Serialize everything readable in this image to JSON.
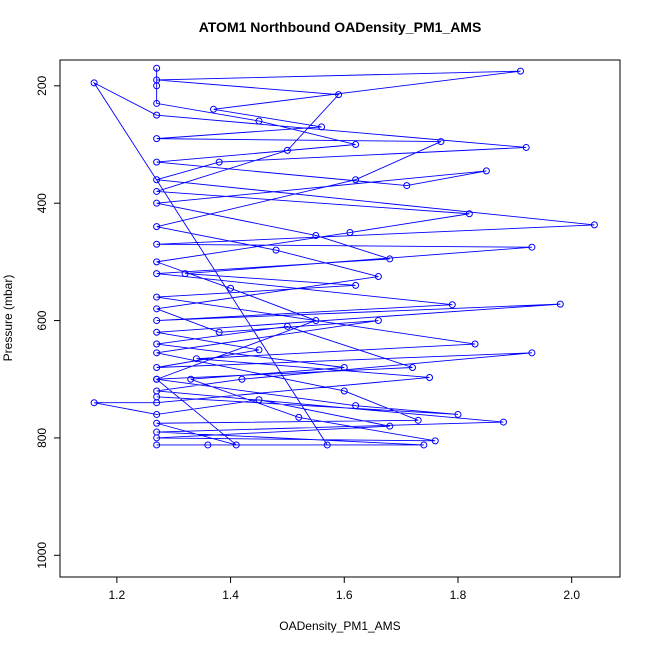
{
  "chart_data": {
    "type": "line-points",
    "title": "ATOM1 Northbound OADensity_PM1_AMS",
    "x_label": "OADensity_PM1_AMS",
    "y_label": "Pressure (mbar)",
    "xlim": [
      1.1,
      2.085
    ],
    "ylim": [
      1037,
      156
    ],
    "y_reversed": true,
    "xticks": [
      1.2,
      1.4,
      1.6,
      1.8,
      {
        "value": 2,
        "label": "2.0"
      }
    ],
    "yticks": [
      200,
      400,
      600,
      800,
      1000
    ],
    "series": [
      {
        "color": "#0000ff",
        "x": [
          1.27,
          1.27,
          1.27,
          1.45,
          1.62,
          1.27,
          1.71,
          1.85,
          1.27,
          1.55,
          1.68,
          1.27,
          1.79,
          1.27,
          1.98,
          1.27,
          1.45,
          1.27,
          1.93,
          1.42,
          1.27,
          1.88,
          1.27,
          1.74,
          1.27,
          1.36,
          1.57,
          1.16,
          1.27,
          1.92,
          1.38,
          1.27,
          2.04,
          1.27,
          1.93,
          1.32,
          1.62,
          1.27,
          1.83,
          1.34,
          1.75,
          1.27,
          1.16,
          1.27,
          1.45,
          1.68,
          1.27,
          1.76,
          1.52,
          1.33,
          1.6,
          1.27,
          1.5,
          1.72,
          1.27,
          1.55,
          1.4,
          1.27,
          1.61,
          1.82,
          1.27,
          1.5,
          1.59,
          1.27,
          1.91,
          1.37,
          1.56,
          1.27,
          1.77,
          1.62,
          1.27,
          1.48,
          1.66,
          1.27,
          1.38,
          1.66,
          1.27,
          1.6,
          1.73,
          1.27,
          1.41,
          1.27,
          1.62,
          1.8,
          1.27
        ],
        "values": [
          170,
          200,
          230,
          260,
          300,
          330,
          370,
          345,
          400,
          455,
          495,
          520,
          573,
          600,
          572,
          620,
          650,
          680,
          655,
          700,
          720,
          773,
          790,
          812,
          812,
          812,
          812,
          195,
          250,
          305,
          330,
          360,
          437,
          470,
          475,
          520,
          540,
          560,
          640,
          665,
          697,
          740,
          740,
          760,
          735,
          780,
          800,
          805,
          765,
          700,
          680,
          640,
          610,
          680,
          700,
          600,
          545,
          500,
          450,
          418,
          380,
          310,
          215,
          190,
          175,
          240,
          270,
          290,
          295,
          360,
          440,
          480,
          525,
          580,
          620,
          600,
          655,
          720,
          770,
          775,
          812,
          700,
          745,
          760,
          730
        ]
      }
    ]
  }
}
